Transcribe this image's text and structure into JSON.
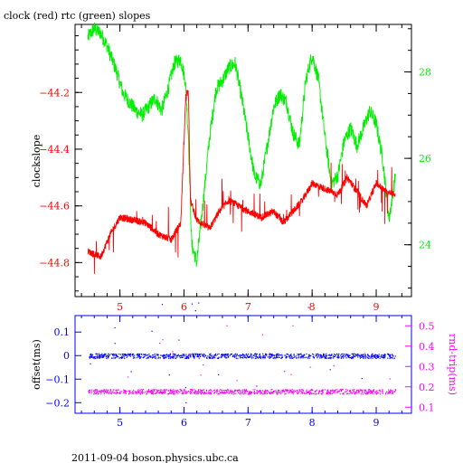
{
  "chart_data": [
    {
      "type": "line",
      "title": "clock (red) rtc (green) slopes",
      "xlabel": "",
      "ylabel_left": "clockslope",
      "ylabel_right": "",
      "xlim": [
        4.3,
        9.55
      ],
      "ylim_left": [
        -44.92,
        -43.96
      ],
      "ylim_right": [
        22.8,
        29.1
      ],
      "x_ticks": [
        "5",
        "6",
        "7",
        "8",
        "9"
      ],
      "y_left_ticks": [
        "-44.2",
        "-44.4",
        "-44.6",
        "-44.8"
      ],
      "y_right_ticks": [
        "28",
        "26",
        "24"
      ],
      "grid": false,
      "colors": {
        "clock": "#ff0000",
        "rtc": "#00ee00",
        "frame": "#000000"
      },
      "series": [
        {
          "axis": "left",
          "color": "#ff0000",
          "x": [
            4.5,
            4.7,
            4.85,
            5.0,
            5.2,
            5.4,
            5.6,
            5.8,
            5.95,
            6.03,
            6.07,
            6.1,
            6.2,
            6.4,
            6.55,
            6.7,
            6.85,
            7.0,
            7.2,
            7.4,
            7.55,
            7.7,
            7.85,
            8.0,
            8.2,
            8.4,
            8.55,
            8.7,
            8.85,
            9.0,
            9.15,
            9.3
          ],
          "y": [
            -44.76,
            -44.78,
            -44.7,
            -44.64,
            -44.65,
            -44.66,
            -44.7,
            -44.72,
            -44.66,
            -44.2,
            -44.2,
            -44.58,
            -44.65,
            -44.68,
            -44.62,
            -44.58,
            -44.6,
            -44.62,
            -44.64,
            -44.62,
            -44.66,
            -44.62,
            -44.58,
            -44.52,
            -44.54,
            -44.56,
            -44.5,
            -44.55,
            -44.6,
            -44.52,
            -44.55,
            -44.56
          ]
        },
        {
          "axis": "right",
          "color": "#00ee00",
          "x": [
            4.5,
            4.6,
            4.7,
            4.8,
            4.95,
            5.05,
            5.15,
            5.25,
            5.35,
            5.45,
            5.55,
            5.65,
            5.75,
            5.85,
            5.95,
            6.02,
            6.07,
            6.12,
            6.2,
            6.3,
            6.4,
            6.5,
            6.6,
            6.7,
            6.8,
            6.9,
            7.0,
            7.1,
            7.2,
            7.3,
            7.4,
            7.5,
            7.6,
            7.7,
            7.8,
            7.9,
            8.0,
            8.1,
            8.2,
            8.3,
            8.4,
            8.5,
            8.6,
            8.7,
            8.8,
            8.9,
            9.0,
            9.1,
            9.2,
            9.3
          ],
          "y": [
            28.8,
            29.0,
            28.9,
            28.6,
            28.0,
            27.5,
            27.3,
            27.1,
            27.0,
            27.2,
            27.4,
            27.1,
            27.6,
            28.2,
            28.3,
            27.8,
            26.5,
            24.0,
            23.6,
            25.0,
            26.5,
            27.6,
            27.8,
            28.1,
            28.2,
            27.4,
            26.5,
            25.6,
            25.4,
            26.3,
            27.2,
            27.5,
            27.3,
            26.6,
            26.3,
            27.8,
            28.4,
            27.8,
            26.5,
            25.4,
            25.6,
            26.4,
            26.7,
            26.3,
            26.7,
            27.1,
            26.8,
            26.0,
            24.6,
            25.6
          ]
        }
      ]
    },
    {
      "type": "scatter",
      "xlabel": "",
      "ylabel_left": "offset(ms)",
      "ylabel_right": "rnd-trip(ms)",
      "xlim": [
        4.3,
        9.55
      ],
      "ylim_left": [
        -0.245,
        0.17
      ],
      "ylim_right": [
        0.07,
        0.55
      ],
      "x_ticks": [
        "5",
        "6",
        "7",
        "8",
        "9"
      ],
      "y_left_ticks": [
        "0.1",
        "0",
        "-0.1",
        "-0.2"
      ],
      "y_right_ticks": [
        "0.5",
        "0.4",
        "0.3",
        "0.2",
        "0.1"
      ],
      "grid": false,
      "colors": {
        "offset": "#0000ff",
        "rndtrip": "#ff00ff",
        "frame": "#0000ff"
      },
      "series": [
        {
          "axis": "left",
          "color": "#0000ff",
          "x_range": [
            4.5,
            9.3
          ],
          "y_center": 0.0,
          "y_spread": 0.01
        },
        {
          "axis": "right",
          "color": "#ff00ff",
          "x_range": [
            4.5,
            9.3
          ],
          "y_center": 0.178,
          "y_spread": 0.012
        }
      ]
    }
  ],
  "footer": "2011-09-04 boson.physics.ubc.ca"
}
